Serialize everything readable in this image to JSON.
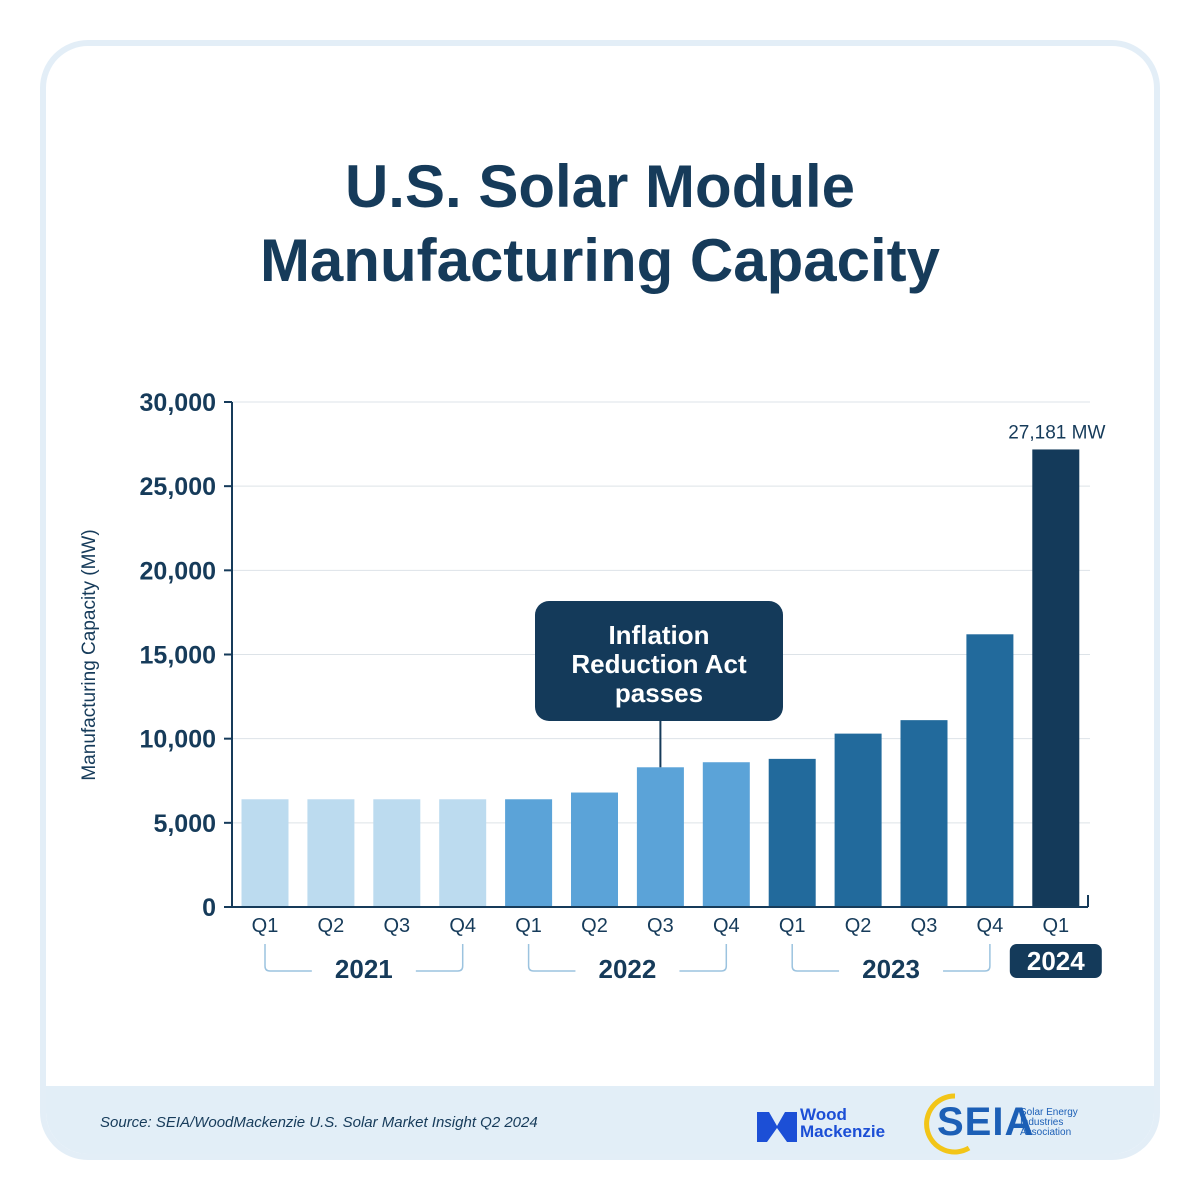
{
  "title_line1": "U.S. Solar Module",
  "title_line2": "Manufacturing Capacity",
  "source": "Source: SEIA/WoodMackenzie U.S. Solar Market Insight Q2 2024",
  "logos": {
    "woodmac_line1": "Wood",
    "woodmac_line2": "Mackenzie",
    "seia": "SEIA",
    "seia_sub1": "Solar Energy",
    "seia_sub2": "Industries",
    "seia_sub3": "Association"
  },
  "colors": {
    "title": "#163b5a",
    "y2021": "#bcdbef",
    "y2022": "#5ba3d8",
    "y2023": "#226a9c",
    "y2024": "#143a5a",
    "callout": "#143a5a"
  },
  "annotation": {
    "text_lines": [
      "Inflation",
      "Reduction Act",
      "passes"
    ],
    "category_index": 6
  },
  "chart_data": {
    "type": "bar",
    "title": "U.S. Solar Module Manufacturing Capacity",
    "ylabel": "Manufacturing Capacity (MW)",
    "xlabel": "",
    "ylim": [
      0,
      30000
    ],
    "yticks": [
      0,
      5000,
      10000,
      15000,
      20000,
      25000,
      30000
    ],
    "ytick_labels": [
      "0",
      "5,000",
      "10,000",
      "15,000",
      "20,000",
      "25,000",
      "30,000"
    ],
    "grid": true,
    "categories": [
      "Q1",
      "Q2",
      "Q3",
      "Q4",
      "Q1",
      "Q2",
      "Q3",
      "Q4",
      "Q1",
      "Q2",
      "Q3",
      "Q4",
      "Q1"
    ],
    "years": [
      {
        "label": "2021",
        "start": 0,
        "end": 3
      },
      {
        "label": "2022",
        "start": 4,
        "end": 7
      },
      {
        "label": "2023",
        "start": 8,
        "end": 11
      },
      {
        "label": "2024",
        "start": 12,
        "end": 12
      }
    ],
    "values": [
      6400,
      6400,
      6400,
      6400,
      6400,
      6800,
      8300,
      8600,
      8800,
      10300,
      11100,
      16200,
      27181
    ],
    "data_labels": [
      "",
      "",
      "",
      "",
      "",
      "",
      "",
      "",
      "",
      "",
      "",
      "",
      "27,181 MW"
    ]
  }
}
